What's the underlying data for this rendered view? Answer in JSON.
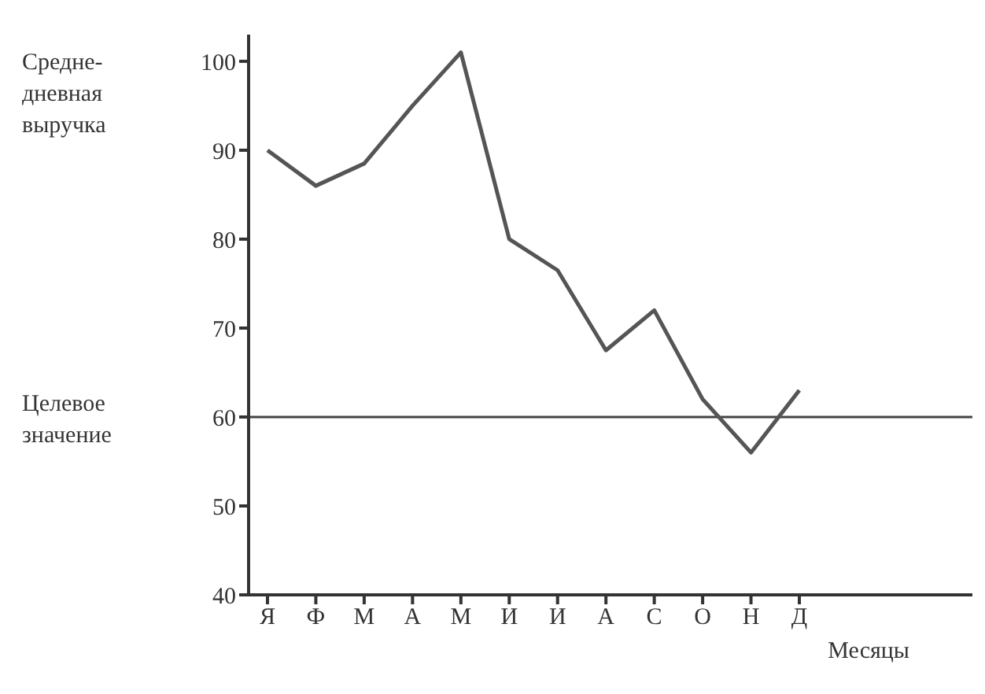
{
  "chart_data": {
    "type": "line",
    "ylabel": "Средне-дневная выручка",
    "xlabel": "Месяцы",
    "categories": [
      "Я",
      "Ф",
      "М",
      "А",
      "М",
      "И",
      "И",
      "А",
      "С",
      "О",
      "Н",
      "Д"
    ],
    "values": [
      90,
      86,
      88.5,
      95,
      101,
      80,
      76.5,
      67.5,
      72,
      62,
      56,
      63
    ],
    "color": "#555555",
    "ylim": [
      40,
      103
    ],
    "yticks": [
      40,
      50,
      60,
      70,
      80,
      90,
      100
    ],
    "ref_lines": [
      {
        "axis": "y",
        "value": 60,
        "label": "Целевое значение",
        "color": "#444444"
      }
    ],
    "grid": false,
    "legend": false,
    "marker": "none",
    "line_style": "solid"
  }
}
